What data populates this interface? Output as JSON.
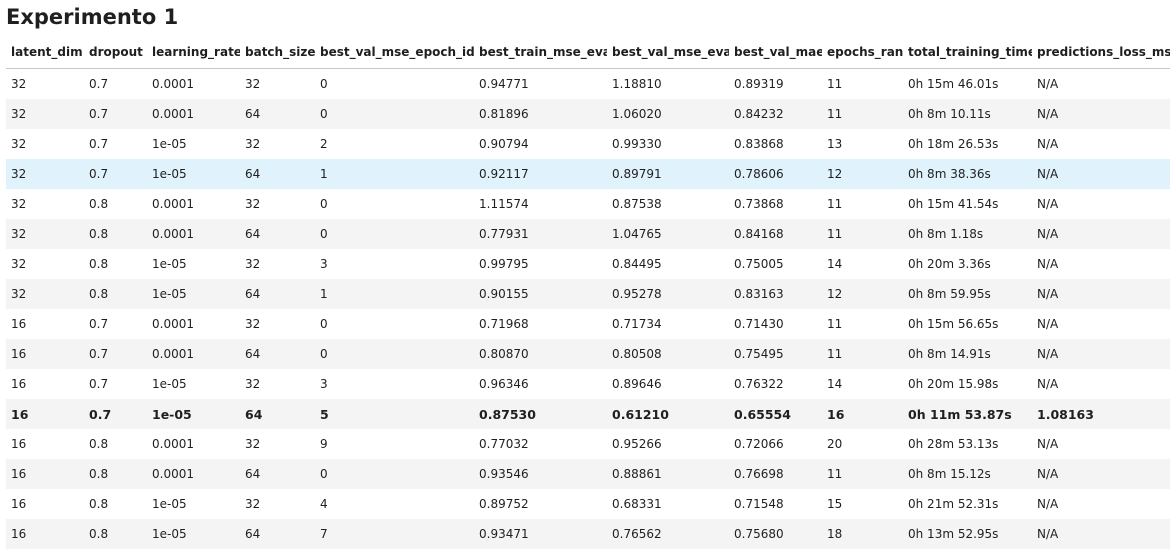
{
  "title": "Experimento 1",
  "columns": [
    "latent_dim",
    "dropout",
    "learning_rate",
    "batch_size",
    "best_val_mse_epoch_idx",
    "best_train_mse_eval",
    "best_val_mse_eval",
    "best_val_mae",
    "epochs_ran",
    "total_training_time",
    "predictions_loss_mse"
  ],
  "rows": [
    [
      "32",
      "0.7",
      "0.0001",
      "32",
      "0",
      "0.94771",
      "1.18810",
      "0.89319",
      "11",
      "0h 15m 46.01s",
      "N/A"
    ],
    [
      "32",
      "0.7",
      "0.0001",
      "64",
      "0",
      "0.81896",
      "1.06020",
      "0.84232",
      "11",
      "0h 8m 10.11s",
      "N/A"
    ],
    [
      "32",
      "0.7",
      "1e-05",
      "32",
      "2",
      "0.90794",
      "0.99330",
      "0.83868",
      "13",
      "0h 18m 26.53s",
      "N/A"
    ],
    [
      "32",
      "0.7",
      "1e-05",
      "64",
      "1",
      "0.92117",
      "0.89791",
      "0.78606",
      "12",
      "0h 8m 38.36s",
      "N/A"
    ],
    [
      "32",
      "0.8",
      "0.0001",
      "32",
      "0",
      "1.11574",
      "0.87538",
      "0.73868",
      "11",
      "0h 15m 41.54s",
      "N/A"
    ],
    [
      "32",
      "0.8",
      "0.0001",
      "64",
      "0",
      "0.77931",
      "1.04765",
      "0.84168",
      "11",
      "0h 8m 1.18s",
      "N/A"
    ],
    [
      "32",
      "0.8",
      "1e-05",
      "32",
      "3",
      "0.99795",
      "0.84495",
      "0.75005",
      "14",
      "0h 20m 3.36s",
      "N/A"
    ],
    [
      "32",
      "0.8",
      "1e-05",
      "64",
      "1",
      "0.90155",
      "0.95278",
      "0.83163",
      "12",
      "0h 8m 59.95s",
      "N/A"
    ],
    [
      "16",
      "0.7",
      "0.0001",
      "32",
      "0",
      "0.71968",
      "0.71734",
      "0.71430",
      "11",
      "0h 15m 56.65s",
      "N/A"
    ],
    [
      "16",
      "0.7",
      "0.0001",
      "64",
      "0",
      "0.80870",
      "0.80508",
      "0.75495",
      "11",
      "0h 8m 14.91s",
      "N/A"
    ],
    [
      "16",
      "0.7",
      "1e-05",
      "32",
      "3",
      "0.96346",
      "0.89646",
      "0.76322",
      "14",
      "0h 20m 15.98s",
      "N/A"
    ],
    [
      "16",
      "0.7",
      "1e-05",
      "64",
      "5",
      "0.87530",
      "0.61210",
      "0.65554",
      "16",
      "0h 11m 53.87s",
      "1.08163"
    ],
    [
      "16",
      "0.8",
      "0.0001",
      "32",
      "9",
      "0.77032",
      "0.95266",
      "0.72066",
      "20",
      "0h 28m 53.13s",
      "N/A"
    ],
    [
      "16",
      "0.8",
      "0.0001",
      "64",
      "0",
      "0.93546",
      "0.88861",
      "0.76698",
      "11",
      "0h 8m 15.12s",
      "N/A"
    ],
    [
      "16",
      "0.8",
      "1e-05",
      "32",
      "4",
      "0.89752",
      "0.68331",
      "0.71548",
      "15",
      "0h 21m 52.31s",
      "N/A"
    ],
    [
      "16",
      "0.8",
      "1e-05",
      "64",
      "7",
      "0.93471",
      "0.76562",
      "0.75680",
      "18",
      "0h 13m 52.95s",
      "N/A"
    ]
  ],
  "highlighted_row": 3,
  "bold_row": 11,
  "colors": {
    "highlight": "#e0f2fb",
    "stripe": "#f4f4f4",
    "text": "#1f1f1f"
  }
}
